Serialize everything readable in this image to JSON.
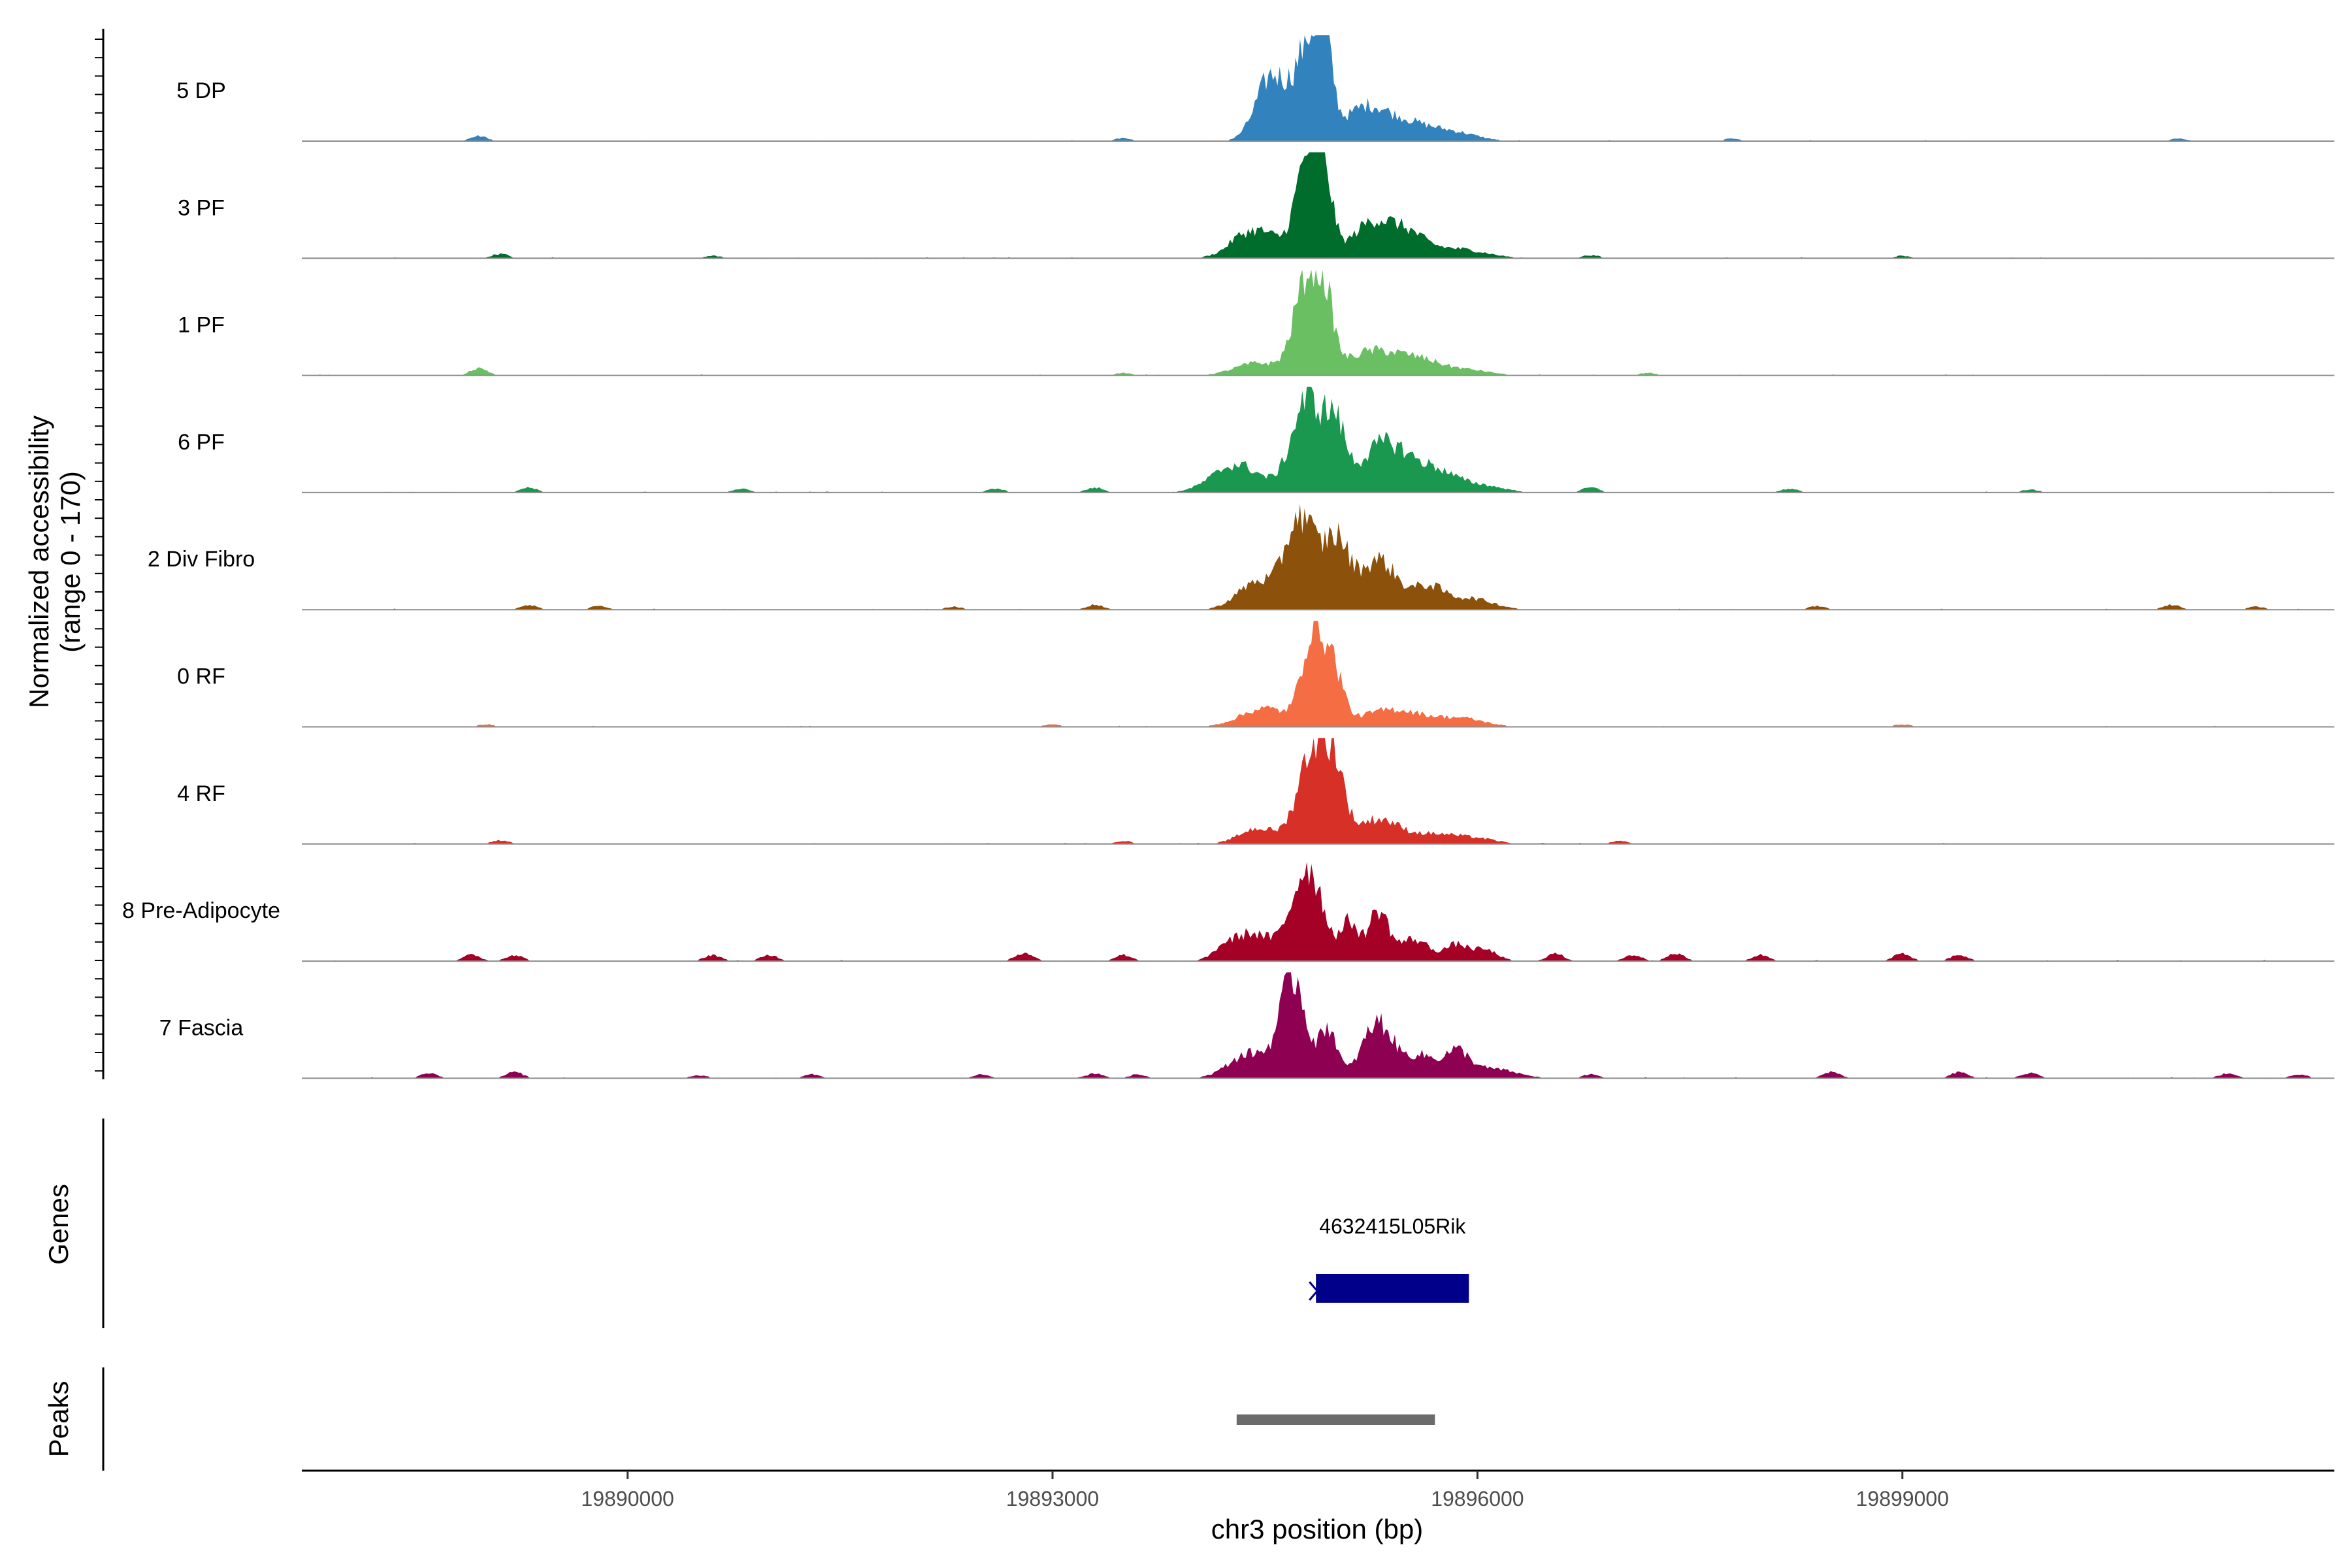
{
  "chart_data": {
    "type": "area",
    "ylabel": [
      "Normalized accessibility",
      "(range 0 - 170)"
    ],
    "xlabel": "chr3 position (bp)",
    "xlim": [
      19887700,
      19902050
    ],
    "ylim": [
      0,
      170
    ],
    "xticks": [
      19890000,
      19893000,
      19896000,
      19899000
    ],
    "grid": false,
    "legend": "none",
    "tracks": [
      {
        "name": "5 DP",
        "color": "#3182bd",
        "peaks": [
          [
            19894550,
            105,
            110
          ],
          [
            19894810,
            150,
            90
          ],
          [
            19894920,
            125,
            55
          ],
          [
            19895200,
            50,
            150
          ],
          [
            19895500,
            28,
            180
          ],
          [
            19895850,
            12,
            160
          ]
        ],
        "noise": [
          [
            19888950,
            8
          ],
          [
            19893500,
            5
          ],
          [
            19897800,
            4
          ],
          [
            19900950,
            4
          ]
        ]
      },
      {
        "name": "3 PF",
        "color": "#006d2c",
        "peaks": [
          [
            19894450,
            45,
            160
          ],
          [
            19894800,
            160,
            80
          ],
          [
            19894920,
            110,
            60
          ],
          [
            19895250,
            55,
            140
          ],
          [
            19895500,
            35,
            130
          ],
          [
            19895850,
            15,
            200
          ]
        ],
        "noise": [
          [
            19889100,
            7
          ],
          [
            19890600,
            4
          ],
          [
            19894300,
            5
          ],
          [
            19896800,
            5
          ],
          [
            19899000,
            4
          ]
        ]
      },
      {
        "name": "1 PF",
        "color": "#6abf63",
        "peaks": [
          [
            19894450,
            20,
            160
          ],
          [
            19894800,
            160,
            90
          ],
          [
            19894930,
            85,
            60
          ],
          [
            19895250,
            38,
            190
          ],
          [
            19895600,
            22,
            160
          ],
          [
            19895950,
            8,
            150
          ]
        ],
        "noise": [
          [
            19888950,
            12
          ],
          [
            19893500,
            4
          ],
          [
            19897200,
            4
          ]
        ]
      },
      {
        "name": "6 PF",
        "color": "#1a9850",
        "peaks": [
          [
            19894300,
            45,
            170
          ],
          [
            19894800,
            150,
            110
          ],
          [
            19895000,
            90,
            70
          ],
          [
            19895350,
            80,
            170
          ],
          [
            19895700,
            30,
            140
          ],
          [
            19896000,
            12,
            170
          ]
        ],
        "noise": [
          [
            19889300,
            8
          ],
          [
            19890800,
            6
          ],
          [
            19892600,
            6
          ],
          [
            19893300,
            8
          ],
          [
            19896800,
            8
          ],
          [
            19898200,
            6
          ],
          [
            19899900,
            5
          ]
        ]
      },
      {
        "name": "2 Div Fibro",
        "color": "#8c510a",
        "peaks": [
          [
            19894450,
            45,
            140
          ],
          [
            19894750,
            150,
            100
          ],
          [
            19895000,
            110,
            90
          ],
          [
            19895300,
            80,
            130
          ],
          [
            19895650,
            35,
            110
          ],
          [
            19895950,
            18,
            160
          ]
        ],
        "noise": [
          [
            19889300,
            8
          ],
          [
            19889800,
            6
          ],
          [
            19892300,
            5
          ],
          [
            19893300,
            8
          ],
          [
            19898400,
            6
          ],
          [
            19900900,
            8
          ],
          [
            19901500,
            5
          ]
        ]
      },
      {
        "name": "0 RF",
        "color": "#f46d43",
        "peaks": [
          [
            19894500,
            30,
            170
          ],
          [
            19894850,
            165,
            80
          ],
          [
            19895000,
            70,
            60
          ],
          [
            19895400,
            28,
            230
          ],
          [
            19895900,
            12,
            160
          ]
        ],
        "noise": [
          [
            19889000,
            4
          ],
          [
            19893000,
            4
          ],
          [
            19899000,
            4
          ]
        ]
      },
      {
        "name": "4 RF",
        "color": "#d73027",
        "peaks": [
          [
            19894450,
            25,
            130
          ],
          [
            19894850,
            160,
            110
          ],
          [
            19895000,
            80,
            70
          ],
          [
            19895300,
            40,
            150
          ],
          [
            19895700,
            15,
            160
          ],
          [
            19896000,
            8,
            140
          ]
        ],
        "noise": [
          [
            19889100,
            6
          ],
          [
            19893500,
            5
          ],
          [
            19897000,
            5
          ]
        ]
      },
      {
        "name": "8 Pre-Adipocyte",
        "color": "#a50026",
        "peaks": [
          [
            19894400,
            45,
            150
          ],
          [
            19894800,
            150,
            110
          ],
          [
            19895100,
            60,
            60
          ],
          [
            19895300,
            80,
            70
          ],
          [
            19895550,
            35,
            110
          ],
          [
            19895850,
            25,
            80
          ],
          [
            19896050,
            18,
            90
          ]
        ],
        "noise": [
          [
            19888900,
            10
          ],
          [
            19889200,
            10
          ],
          [
            19890600,
            10
          ],
          [
            19891000,
            10
          ],
          [
            19892800,
            14
          ],
          [
            19893500,
            10
          ],
          [
            19894200,
            10
          ],
          [
            19896550,
            12
          ],
          [
            19897100,
            10
          ],
          [
            19897400,
            12
          ],
          [
            19898000,
            10
          ],
          [
            19899000,
            12
          ],
          [
            19899400,
            10
          ]
        ]
      },
      {
        "name": "7 Fascia",
        "color": "#8e0152",
        "peaks": [
          [
            19894400,
            40,
            150
          ],
          [
            19894700,
            160,
            90
          ],
          [
            19894950,
            80,
            60
          ],
          [
            19895300,
            90,
            110
          ],
          [
            19895600,
            35,
            100
          ],
          [
            19895850,
            40,
            90
          ],
          [
            19896100,
            15,
            170
          ]
        ],
        "noise": [
          [
            19888600,
            8
          ],
          [
            19889200,
            10
          ],
          [
            19890500,
            5
          ],
          [
            19891300,
            6
          ],
          [
            19892500,
            6
          ],
          [
            19893300,
            8
          ],
          [
            19893600,
            6
          ],
          [
            19896800,
            6
          ],
          [
            19898500,
            10
          ],
          [
            19899400,
            10
          ],
          [
            19899900,
            8
          ],
          [
            19901300,
            8
          ],
          [
            19901800,
            6
          ]
        ]
      }
    ],
    "genes": {
      "title": "Genes",
      "items": [
        {
          "name": "4632415L05Rik",
          "start": 19894860,
          "end": 19895940,
          "strand": "-",
          "color": "#00008b"
        }
      ]
    },
    "peaks_track": {
      "title": "Peaks",
      "items": [
        {
          "start": 19894300,
          "end": 19895700,
          "color": "#6b6b6b"
        }
      ]
    }
  }
}
